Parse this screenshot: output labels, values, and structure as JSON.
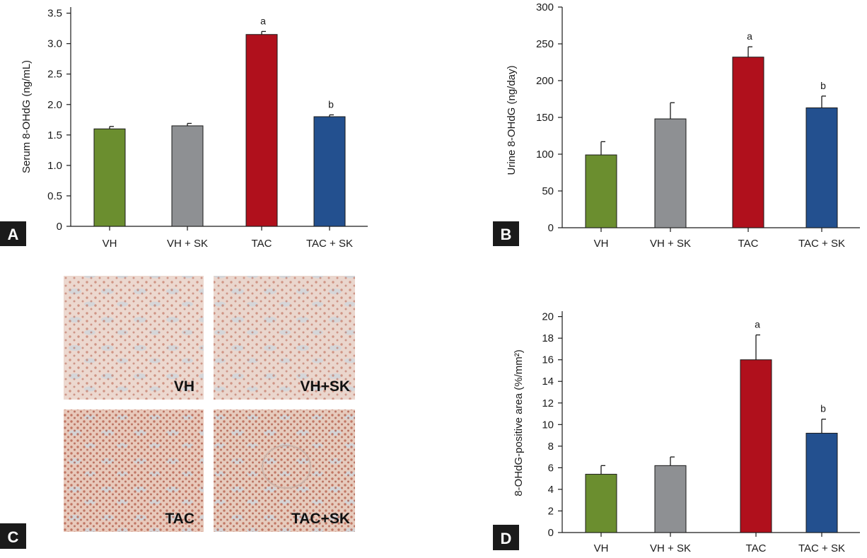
{
  "chart_data": [
    {
      "panel": "A",
      "type": "bar",
      "categories": [
        "VH",
        "VH + SK",
        "TAC",
        "TAC + SK"
      ],
      "values": [
        1.6,
        1.65,
        3.15,
        1.8
      ],
      "errors": [
        0.04,
        0.04,
        0.05,
        0.03
      ],
      "annotations": [
        "",
        "",
        "a",
        "b"
      ],
      "colors": [
        "#6b8e2f",
        "#8e9093",
        "#b0101c",
        "#23508f"
      ],
      "ylabel": "Serum 8-OHdG (ng/mL)",
      "yticks": [
        "0",
        "0.5",
        "1.0",
        "1.5",
        "2.0",
        "2.5",
        "3.0",
        "3.5"
      ],
      "ylim": [
        0,
        3.6
      ]
    },
    {
      "panel": "B",
      "type": "bar",
      "categories": [
        "VH",
        "VH + SK",
        "TAC",
        "TAC + SK"
      ],
      "values": [
        99,
        148,
        232,
        163
      ],
      "errors": [
        18,
        22,
        14,
        16
      ],
      "annotations": [
        "",
        "",
        "a",
        "b"
      ],
      "colors": [
        "#6b8e2f",
        "#8e9093",
        "#b0101c",
        "#23508f"
      ],
      "ylabel": "Urine 8-OHdG (ng/day)",
      "yticks": [
        "0",
        "50",
        "100",
        "150",
        "200",
        "250",
        "300"
      ],
      "ylim": [
        0,
        300
      ]
    },
    {
      "panel": "D",
      "type": "bar",
      "categories": [
        "VH",
        "VH + SK",
        "TAC",
        "TAC + SK"
      ],
      "values": [
        5.4,
        6.2,
        16.0,
        9.2
      ],
      "errors": [
        0.8,
        0.8,
        2.3,
        1.3
      ],
      "annotations": [
        "",
        "",
        "a",
        "b"
      ],
      "colors": [
        "#6b8e2f",
        "#8e9093",
        "#b0101c",
        "#23508f"
      ],
      "ylabel": "8-OHdG-positive area (%/mm²)",
      "yticks": [
        "0",
        "2",
        "4",
        "6",
        "8",
        "10",
        "12",
        "14",
        "16",
        "18",
        "20"
      ],
      "ylim": [
        0,
        20.5
      ]
    }
  ],
  "micrographs": {
    "panel": "C",
    "labels": [
      "VH",
      "VH+SK",
      "TAC",
      "TAC+SK"
    ]
  },
  "panel_letters": [
    "A",
    "B",
    "C",
    "D"
  ]
}
